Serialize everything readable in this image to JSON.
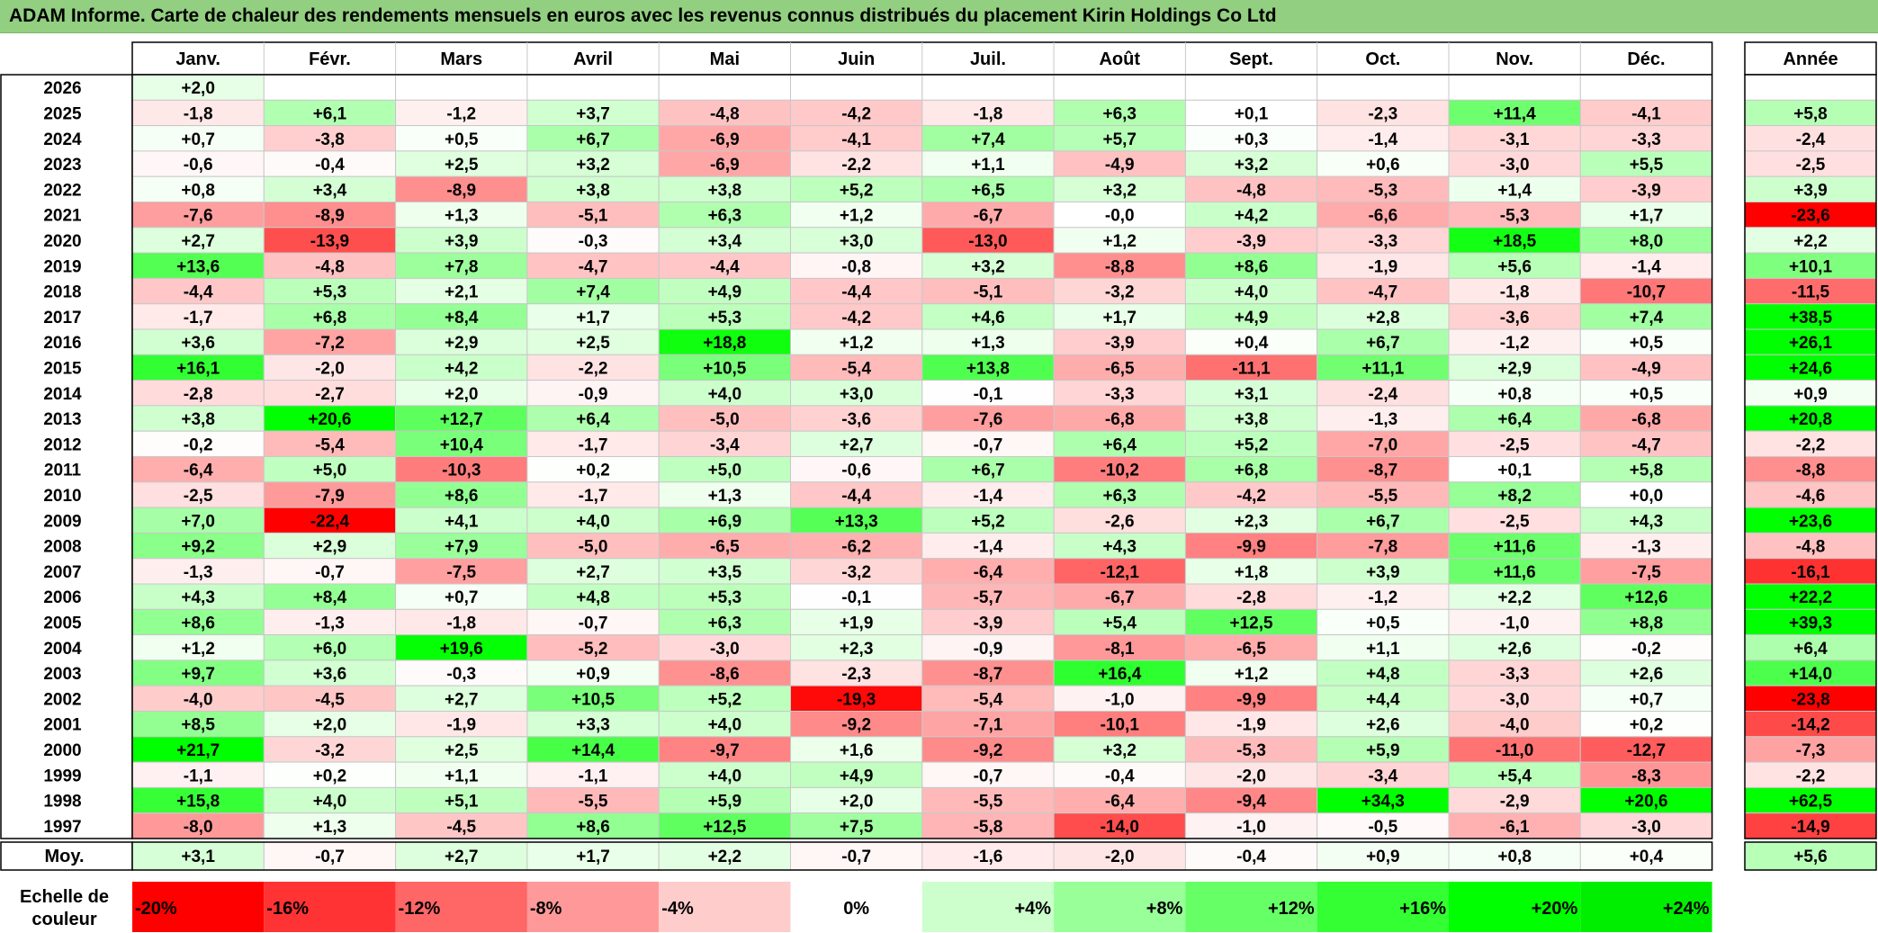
{
  "title": "ADAM Informe. Carte de chaleur des rendements mensuels en euros avec les revenus connus distribués du placement Kirin Holdings Co Ltd",
  "chart_data": {
    "type": "heatmap",
    "columns": [
      "Janv.",
      "Févr.",
      "Mars",
      "Avril",
      "Mai",
      "Juin",
      "Juil.",
      "Août",
      "Sept.",
      "Oct.",
      "Nov.",
      "Déc."
    ],
    "annual_column": "Année",
    "rows": [
      {
        "year": "2026",
        "months": [
          "+2,0",
          "",
          "",
          "",
          "",
          "",
          "",
          "",
          "",
          "",
          "",
          ""
        ],
        "annual": ""
      },
      {
        "year": "2025",
        "months": [
          "-1,8",
          "+6,1",
          "-1,2",
          "+3,7",
          "-4,8",
          "-4,2",
          "-1,8",
          "+6,3",
          "+0,1",
          "-2,3",
          "+11,4",
          "-4,1"
        ],
        "annual": "+5,8"
      },
      {
        "year": "2024",
        "months": [
          "+0,7",
          "-3,8",
          "+0,5",
          "+6,7",
          "-6,9",
          "-4,1",
          "+7,4",
          "+5,7",
          "+0,3",
          "-1,4",
          "-3,1",
          "-3,3"
        ],
        "annual": "-2,4"
      },
      {
        "year": "2023",
        "months": [
          "-0,6",
          "-0,4",
          "+2,5",
          "+3,2",
          "-6,9",
          "-2,2",
          "+1,1",
          "-4,9",
          "+3,2",
          "+0,6",
          "-3,0",
          "+5,5"
        ],
        "annual": "-2,5"
      },
      {
        "year": "2022",
        "months": [
          "+0,8",
          "+3,4",
          "-8,9",
          "+3,8",
          "+3,8",
          "+5,2",
          "+6,5",
          "+3,2",
          "-4,8",
          "-5,3",
          "+1,4",
          "-3,9"
        ],
        "annual": "+3,9"
      },
      {
        "year": "2021",
        "months": [
          "-7,6",
          "-8,9",
          "+1,3",
          "-5,1",
          "+6,3",
          "+1,2",
          "-6,7",
          "-0,0",
          "+4,2",
          "-6,6",
          "-5,3",
          "+1,7"
        ],
        "annual": "-23,6"
      },
      {
        "year": "2020",
        "months": [
          "+2,7",
          "-13,9",
          "+3,9",
          "-0,3",
          "+3,4",
          "+3,0",
          "-13,0",
          "+1,2",
          "-3,9",
          "-3,3",
          "+18,5",
          "+8,0"
        ],
        "annual": "+2,2"
      },
      {
        "year": "2019",
        "months": [
          "+13,6",
          "-4,8",
          "+7,8",
          "-4,7",
          "-4,4",
          "-0,8",
          "+3,2",
          "-8,8",
          "+8,6",
          "-1,9",
          "+5,6",
          "-1,4"
        ],
        "annual": "+10,1"
      },
      {
        "year": "2018",
        "months": [
          "-4,4",
          "+5,3",
          "+2,1",
          "+7,4",
          "+4,9",
          "-4,4",
          "-5,1",
          "-3,2",
          "+4,0",
          "-4,7",
          "-1,8",
          "-10,7"
        ],
        "annual": "-11,5"
      },
      {
        "year": "2017",
        "months": [
          "-1,7",
          "+6,8",
          "+8,4",
          "+1,7",
          "+5,3",
          "-4,2",
          "+4,6",
          "+1,7",
          "+4,9",
          "+2,8",
          "-3,6",
          "+7,4"
        ],
        "annual": "+38,5"
      },
      {
        "year": "2016",
        "months": [
          "+3,6",
          "-7,2",
          "+2,9",
          "+2,5",
          "+18,8",
          "+1,2",
          "+1,3",
          "-3,9",
          "+0,4",
          "+6,7",
          "-1,2",
          "+0,5"
        ],
        "annual": "+26,1"
      },
      {
        "year": "2015",
        "months": [
          "+16,1",
          "-2,0",
          "+4,2",
          "-2,2",
          "+10,5",
          "-5,4",
          "+13,8",
          "-6,5",
          "-11,1",
          "+11,1",
          "+2,9",
          "-4,9"
        ],
        "annual": "+24,6"
      },
      {
        "year": "2014",
        "months": [
          "-2,8",
          "-2,7",
          "+2,0",
          "-0,9",
          "+4,0",
          "+3,0",
          "-0,1",
          "-3,3",
          "+3,1",
          "-2,4",
          "+0,8",
          "+0,5"
        ],
        "annual": "+0,9"
      },
      {
        "year": "2013",
        "months": [
          "+3,8",
          "+20,6",
          "+12,7",
          "+6,4",
          "-5,0",
          "-3,6",
          "-7,6",
          "-6,8",
          "+3,8",
          "-1,3",
          "+6,4",
          "-6,8"
        ],
        "annual": "+20,8"
      },
      {
        "year": "2012",
        "months": [
          "-0,2",
          "-5,4",
          "+10,4",
          "-1,7",
          "-3,4",
          "+2,7",
          "-0,7",
          "+6,4",
          "+5,2",
          "-7,0",
          "-2,5",
          "-4,7"
        ],
        "annual": "-2,2"
      },
      {
        "year": "2011",
        "months": [
          "-6,4",
          "+5,0",
          "-10,3",
          "+0,2",
          "+5,0",
          "-0,6",
          "+6,7",
          "-10,2",
          "+6,8",
          "-8,7",
          "+0,1",
          "+5,8"
        ],
        "annual": "-8,8"
      },
      {
        "year": "2010",
        "months": [
          "-2,5",
          "-7,9",
          "+8,6",
          "-1,7",
          "+1,3",
          "-4,4",
          "-1,4",
          "+6,3",
          "-4,2",
          "-5,5",
          "+8,2",
          "+0,0"
        ],
        "annual": "-4,6"
      },
      {
        "year": "2009",
        "months": [
          "+7,0",
          "-22,4",
          "+4,1",
          "+4,0",
          "+6,9",
          "+13,3",
          "+5,2",
          "-2,6",
          "+2,3",
          "+6,7",
          "-2,5",
          "+4,3"
        ],
        "annual": "+23,6"
      },
      {
        "year": "2008",
        "months": [
          "+9,2",
          "+2,9",
          "+7,9",
          "-5,0",
          "-6,5",
          "-6,2",
          "-1,4",
          "+4,3",
          "-9,9",
          "-7,8",
          "+11,6",
          "-1,3"
        ],
        "annual": "-4,8"
      },
      {
        "year": "2007",
        "months": [
          "-1,3",
          "-0,7",
          "-7,5",
          "+2,7",
          "+3,5",
          "-3,2",
          "-6,4",
          "-12,1",
          "+1,8",
          "+3,9",
          "+11,6",
          "-7,5"
        ],
        "annual": "-16,1"
      },
      {
        "year": "2006",
        "months": [
          "+4,3",
          "+8,4",
          "+0,7",
          "+4,8",
          "+5,3",
          "-0,1",
          "-5,7",
          "-6,7",
          "-2,8",
          "-1,2",
          "+2,2",
          "+12,6"
        ],
        "annual": "+22,2"
      },
      {
        "year": "2005",
        "months": [
          "+8,6",
          "-1,3",
          "-1,8",
          "-0,7",
          "+6,3",
          "+1,9",
          "-3,9",
          "+5,4",
          "+12,5",
          "+0,5",
          "-1,0",
          "+8,8"
        ],
        "annual": "+39,3"
      },
      {
        "year": "2004",
        "months": [
          "+1,2",
          "+6,0",
          "+19,6",
          "-5,2",
          "-3,0",
          "+2,3",
          "-0,9",
          "-8,1",
          "-6,5",
          "+1,1",
          "+2,6",
          "-0,2"
        ],
        "annual": "+6,4"
      },
      {
        "year": "2003",
        "months": [
          "+9,7",
          "+3,6",
          "-0,3",
          "+0,9",
          "-8,6",
          "-2,3",
          "-8,7",
          "+16,4",
          "+1,2",
          "+4,8",
          "-3,3",
          "+2,6"
        ],
        "annual": "+14,0"
      },
      {
        "year": "2002",
        "months": [
          "-4,0",
          "-4,5",
          "+2,7",
          "+10,5",
          "+5,2",
          "-19,3",
          "-5,4",
          "-1,0",
          "-9,9",
          "+4,4",
          "-3,0",
          "+0,7"
        ],
        "annual": "-23,8"
      },
      {
        "year": "2001",
        "months": [
          "+8,5",
          "+2,0",
          "-1,9",
          "+3,3",
          "+4,0",
          "-9,2",
          "-7,1",
          "-10,1",
          "-1,9",
          "+2,6",
          "-4,0",
          "+0,2"
        ],
        "annual": "-14,2"
      },
      {
        "year": "2000",
        "months": [
          "+21,7",
          "-3,2",
          "+2,5",
          "+14,4",
          "-9,7",
          "+1,6",
          "-9,2",
          "+3,2",
          "-5,3",
          "+5,9",
          "-11,0",
          "-12,7"
        ],
        "annual": "-7,3"
      },
      {
        "year": "1999",
        "months": [
          "-1,1",
          "+0,2",
          "+1,1",
          "-1,1",
          "+4,0",
          "+4,9",
          "-0,7",
          "-0,4",
          "-2,0",
          "-3,4",
          "+5,4",
          "-8,3"
        ],
        "annual": "-2,2"
      },
      {
        "year": "1998",
        "months": [
          "+15,8",
          "+4,0",
          "+5,1",
          "-5,5",
          "+5,9",
          "+2,0",
          "-5,5",
          "-6,4",
          "-9,4",
          "+34,3",
          "-2,9",
          "+20,6"
        ],
        "annual": "+62,5"
      },
      {
        "year": "1997",
        "months": [
          "-8,0",
          "+1,3",
          "-4,5",
          "+8,6",
          "+12,5",
          "+7,5",
          "-5,8",
          "-14,0",
          "-1,0",
          "-0,5",
          "-6,1",
          "-3,0"
        ],
        "annual": "-14,9"
      }
    ],
    "average": {
      "label": "Moy.",
      "months": [
        "+3,1",
        "-0,7",
        "+2,7",
        "+1,7",
        "+2,2",
        "-0,7",
        "-1,6",
        "-2,0",
        "-0,4",
        "+0,9",
        "+0,8",
        "+0,4"
      ],
      "annual": "+5,6"
    },
    "color_scale": {
      "label": "Echelle de couleur",
      "steps": [
        {
          "label": "-20%",
          "value": -20,
          "color": "#ff0000"
        },
        {
          "label": "-16%",
          "value": -16,
          "color": "#ff3333"
        },
        {
          "label": "-12%",
          "value": -12,
          "color": "#ff6666"
        },
        {
          "label": "-8%",
          "value": -8,
          "color": "#ff9999"
        },
        {
          "label": "-4%",
          "value": -4,
          "color": "#ffcccc"
        },
        {
          "label": "0%",
          "value": 0,
          "color": "#ffffff"
        },
        {
          "label": "+4%",
          "value": 4,
          "color": "#ccffcc"
        },
        {
          "label": "+8%",
          "value": 8,
          "color": "#99ff99"
        },
        {
          "label": "+12%",
          "value": 12,
          "color": "#66ff66"
        },
        {
          "label": "+16%",
          "value": 16,
          "color": "#33ff33"
        },
        {
          "label": "+20%",
          "value": 20,
          "color": "#00ff00"
        },
        {
          "label": "+24%",
          "value": 24,
          "color": "#00ee00"
        }
      ]
    },
    "colors": {
      "title_bar": "#92cf80",
      "grid": "#c8c8c8",
      "border": "#000000"
    }
  }
}
